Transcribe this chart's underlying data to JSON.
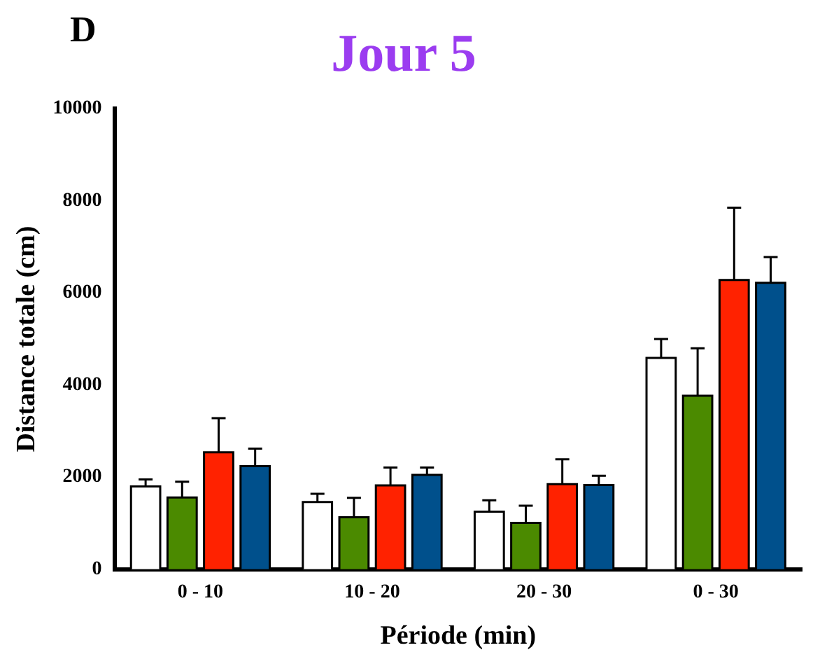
{
  "chart_data": {
    "type": "bar",
    "title": "Jour 5",
    "annotations": [
      "D"
    ],
    "xlabel": "Période (min)",
    "ylabel": "Distance totale (cm)",
    "categories": [
      "0 - 10",
      "10 - 20",
      "20 - 30",
      "0 - 30"
    ],
    "series": [
      {
        "color": "#ffffff",
        "values": [
          1800,
          1460,
          1250,
          4590
        ],
        "errors": [
          [
            1800,
            1950
          ],
          [
            1460,
            1640
          ],
          [
            1250,
            1500
          ],
          [
            4590,
            5000
          ]
        ]
      },
      {
        "color": "#4b8a00",
        "values": [
          1560,
          1130,
          1010,
          3770
        ],
        "errors": [
          [
            1560,
            1900
          ],
          [
            1130,
            1550
          ],
          [
            1010,
            1380
          ],
          [
            3770,
            4800
          ]
        ]
      },
      {
        "color": "#ff2200",
        "values": [
          2540,
          1820,
          1850,
          6280
        ],
        "errors": [
          [
            2540,
            3280
          ],
          [
            1820,
            2210
          ],
          [
            1850,
            2390
          ],
          [
            6280,
            7850
          ]
        ]
      },
      {
        "color": "#00508c",
        "values": [
          2240,
          2050,
          1830,
          6220
        ],
        "errors": [
          [
            2240,
            2620
          ],
          [
            2050,
            2210
          ],
          [
            1830,
            2030
          ],
          [
            6220,
            6780
          ]
        ]
      }
    ],
    "ylim": [
      0,
      10000
    ],
    "yticks": [
      0,
      2000,
      4000,
      6000,
      8000,
      10000
    ],
    "grid": false,
    "legend": false
  }
}
